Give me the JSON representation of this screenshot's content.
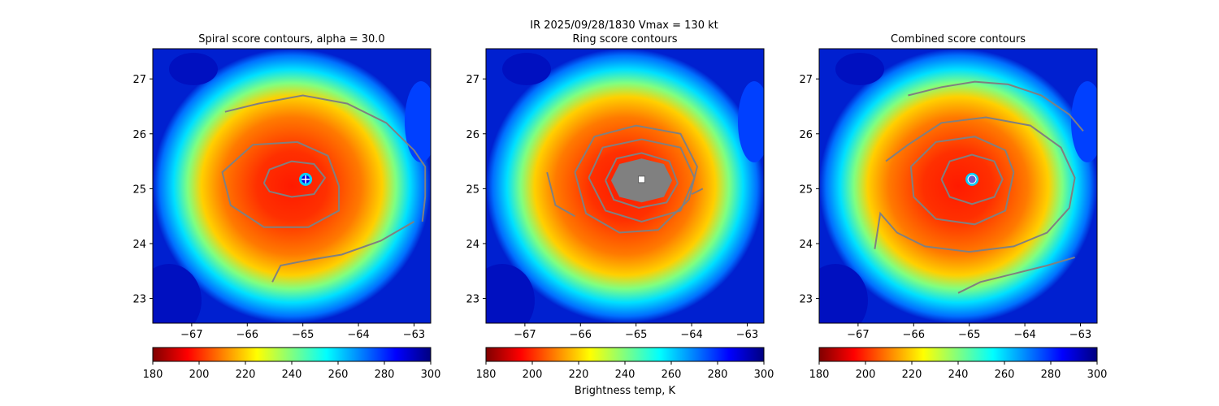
{
  "suptitle": {
    "line1": "IR  2025/09/28/1830    Vmax = 130 kt",
    "line2": "Ring score contours"
  },
  "colormap": {
    "name": "jet_r",
    "stops": [
      "#800000",
      "#ff0000",
      "#ff8000",
      "#ffff00",
      "#80ff80",
      "#00ffff",
      "#0080ff",
      "#0000ff",
      "#000080"
    ]
  },
  "colorbar": {
    "ticks": [
      "180",
      "200",
      "220",
      "240",
      "260",
      "280",
      "300"
    ],
    "label": "Brightness temp, K",
    "range": [
      180,
      300
    ]
  },
  "contour_color": "#808080",
  "chart_data": [
    {
      "type": "heatmap",
      "title": "Spiral score contours, alpha = 30.0",
      "quantity": "Brightness temp, K",
      "xlim": [
        -67.7,
        -62.7
      ],
      "ylim": [
        22.55,
        27.55
      ],
      "xticks": [
        "-67",
        "-66",
        "-65",
        "-64",
        "-63"
      ],
      "yticks": [
        "23",
        "24",
        "25",
        "26",
        "27"
      ],
      "center": [
        -64.95,
        25.17
      ],
      "center_marker": "+",
      "eye_temp_K": 295,
      "contours": [
        [
          [
            -65.7,
            25.1
          ],
          [
            -65.6,
            25.35
          ],
          [
            -65.2,
            25.5
          ],
          [
            -64.8,
            25.45
          ],
          [
            -64.6,
            25.2
          ],
          [
            -64.8,
            24.9
          ],
          [
            -65.2,
            24.85
          ],
          [
            -65.6,
            24.95
          ],
          [
            -65.7,
            25.1
          ]
        ],
        [
          [
            -64.35,
            25.05
          ],
          [
            -64.55,
            25.6
          ],
          [
            -65.1,
            25.85
          ],
          [
            -65.9,
            25.8
          ],
          [
            -66.45,
            25.3
          ],
          [
            -66.3,
            24.7
          ],
          [
            -65.7,
            24.3
          ],
          [
            -64.9,
            24.3
          ],
          [
            -64.35,
            24.6
          ],
          [
            -64.35,
            25.05
          ]
        ],
        [
          [
            -66.4,
            26.4
          ],
          [
            -65.8,
            26.55
          ],
          [
            -65.0,
            26.7
          ],
          [
            -64.2,
            26.55
          ],
          [
            -63.5,
            26.2
          ],
          [
            -63.0,
            25.7
          ],
          [
            -62.8,
            25.4
          ],
          [
            -62.8,
            24.85
          ],
          [
            -62.85,
            24.4
          ]
        ],
        [
          [
            -65.55,
            23.3
          ],
          [
            -65.4,
            23.6
          ],
          [
            -64.9,
            23.7
          ],
          [
            -64.3,
            23.8
          ],
          [
            -63.6,
            24.05
          ],
          [
            -63.0,
            24.4
          ]
        ]
      ]
    },
    {
      "type": "heatmap",
      "title": "Ring score contours",
      "quantity": "Brightness temp, K",
      "xlim": [
        -67.7,
        -62.7
      ],
      "ylim": [
        22.55,
        27.55
      ],
      "xticks": [
        "-67",
        "-66",
        "-65",
        "-64",
        "-63"
      ],
      "yticks": [
        "23",
        "24",
        "25",
        "26",
        "27"
      ],
      "center": [
        -64.9,
        25.17
      ],
      "center_marker": "square",
      "eye_temp_K": 295,
      "contours": [
        [
          [
            -65.55,
            25.15
          ],
          [
            -65.35,
            25.55
          ],
          [
            -64.9,
            25.65
          ],
          [
            -64.4,
            25.5
          ],
          [
            -64.25,
            25.1
          ],
          [
            -64.45,
            24.75
          ],
          [
            -64.95,
            24.65
          ],
          [
            -65.4,
            24.8
          ],
          [
            -65.55,
            25.15
          ]
        ],
        [
          [
            -65.85,
            25.2
          ],
          [
            -65.6,
            25.75
          ],
          [
            -64.9,
            25.9
          ],
          [
            -64.2,
            25.75
          ],
          [
            -63.95,
            25.2
          ],
          [
            -64.2,
            24.6
          ],
          [
            -64.9,
            24.4
          ],
          [
            -65.55,
            24.6
          ],
          [
            -65.85,
            25.2
          ]
        ],
        [
          [
            -66.1,
            25.3
          ],
          [
            -65.75,
            25.95
          ],
          [
            -65.0,
            26.15
          ],
          [
            -64.2,
            26.0
          ],
          [
            -63.9,
            25.4
          ],
          [
            -64.05,
            24.8
          ],
          [
            -64.6,
            24.25
          ],
          [
            -65.3,
            24.2
          ],
          [
            -65.9,
            24.55
          ],
          [
            -66.1,
            25.3
          ]
        ],
        [
          [
            -66.6,
            25.3
          ],
          [
            -66.45,
            24.7
          ],
          [
            -66.1,
            24.5
          ]
        ],
        [
          [
            -64.0,
            24.9
          ],
          [
            -63.8,
            25.0
          ]
        ]
      ],
      "filled_region": [
        [
          -65.45,
          25.15
        ],
        [
          -65.3,
          25.45
        ],
        [
          -64.9,
          25.55
        ],
        [
          -64.5,
          25.45
        ],
        [
          -64.35,
          25.15
        ],
        [
          -64.5,
          24.85
        ],
        [
          -64.9,
          24.75
        ],
        [
          -65.3,
          24.85
        ]
      ]
    },
    {
      "type": "heatmap",
      "title": "Combined score contours",
      "quantity": "Brightness temp, K",
      "xlim": [
        -67.7,
        -62.7
      ],
      "ylim": [
        22.55,
        27.55
      ],
      "xticks": [
        "-67",
        "-66",
        "-65",
        "-64",
        "-63"
      ],
      "yticks": [
        "23",
        "24",
        "25",
        "26",
        "27"
      ],
      "center": [
        -64.95,
        25.17
      ],
      "center_marker": "circle",
      "eye_temp_K": 290,
      "contours": [
        [
          [
            -65.5,
            25.17
          ],
          [
            -65.35,
            25.5
          ],
          [
            -64.95,
            25.62
          ],
          [
            -64.55,
            25.5
          ],
          [
            -64.4,
            25.17
          ],
          [
            -64.55,
            24.85
          ],
          [
            -64.95,
            24.72
          ],
          [
            -65.35,
            24.85
          ],
          [
            -65.5,
            25.17
          ]
        ],
        [
          [
            -64.2,
            25.3
          ],
          [
            -64.35,
            25.7
          ],
          [
            -64.9,
            25.95
          ],
          [
            -65.6,
            25.85
          ],
          [
            -66.05,
            25.4
          ],
          [
            -66.0,
            24.85
          ],
          [
            -65.6,
            24.45
          ],
          [
            -64.9,
            24.35
          ],
          [
            -64.35,
            24.6
          ],
          [
            -64.2,
            25.3
          ]
        ],
        [
          [
            -66.5,
            25.5
          ],
          [
            -66.1,
            25.8
          ],
          [
            -65.5,
            26.2
          ],
          [
            -64.7,
            26.3
          ],
          [
            -63.9,
            26.15
          ],
          [
            -63.35,
            25.75
          ],
          [
            -63.1,
            25.2
          ],
          [
            -63.2,
            24.65
          ],
          [
            -63.6,
            24.2
          ],
          [
            -64.2,
            23.95
          ],
          [
            -65.0,
            23.85
          ],
          [
            -65.8,
            23.95
          ],
          [
            -66.3,
            24.2
          ],
          [
            -66.6,
            24.55
          ],
          [
            -66.7,
            23.9
          ]
        ],
        [
          [
            -66.1,
            26.7
          ],
          [
            -65.5,
            26.85
          ],
          [
            -64.9,
            26.95
          ],
          [
            -64.3,
            26.9
          ],
          [
            -63.7,
            26.7
          ],
          [
            -63.2,
            26.35
          ],
          [
            -62.95,
            26.05
          ]
        ],
        [
          [
            -65.2,
            23.1
          ],
          [
            -64.8,
            23.3
          ],
          [
            -64.2,
            23.45
          ],
          [
            -63.6,
            23.6
          ],
          [
            -63.1,
            23.75
          ]
        ]
      ]
    }
  ]
}
